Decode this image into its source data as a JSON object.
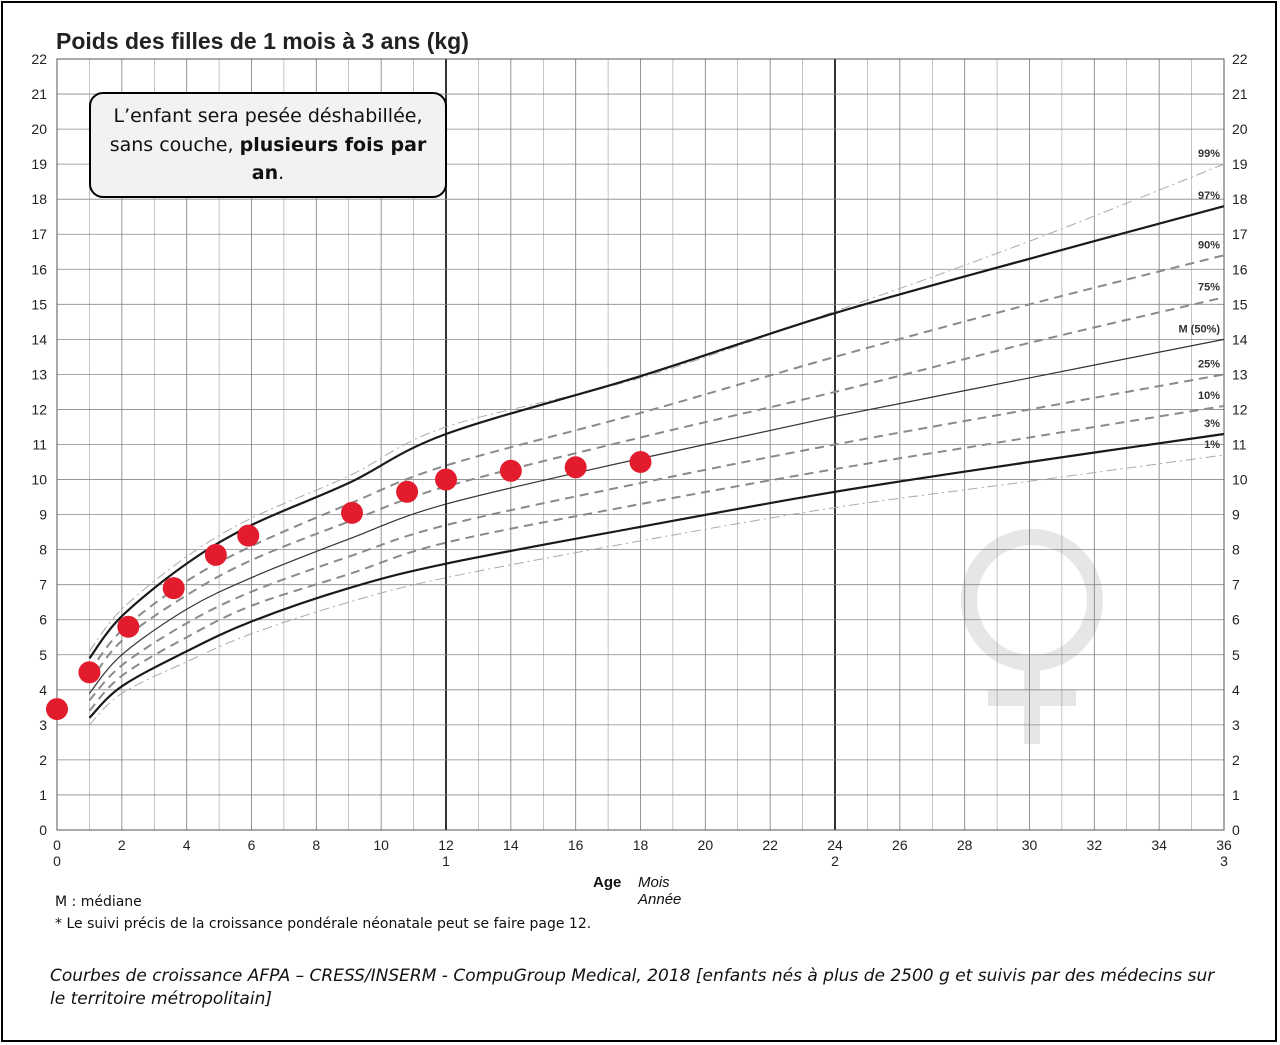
{
  "chart_data": {
    "type": "line",
    "title": "Poids des filles de 1 mois à 3 ans (kg)",
    "xlabel": "Age",
    "x_units": [
      "Mois",
      "Année"
    ],
    "xlim": [
      0,
      36
    ],
    "ylim": [
      0,
      22
    ],
    "x_ticks_months": [
      0,
      2,
      4,
      6,
      8,
      10,
      12,
      14,
      16,
      18,
      20,
      22,
      24,
      26,
      28,
      30,
      32,
      34,
      36
    ],
    "x_ticks_years": [
      {
        "x": 0,
        "label": "0"
      },
      {
        "x": 12,
        "label": "1"
      },
      {
        "x": 24,
        "label": "2"
      },
      {
        "x": 36,
        "label": "3"
      }
    ],
    "y_ticks": [
      0,
      1,
      2,
      3,
      4,
      5,
      6,
      7,
      8,
      9,
      10,
      11,
      12,
      13,
      14,
      15,
      16,
      17,
      18,
      19,
      20,
      21,
      22
    ],
    "grid": true,
    "series": [
      {
        "name": "99%",
        "style": "dashdot",
        "x": [
          1,
          2,
          4,
          6,
          9,
          12,
          18,
          24,
          30,
          36
        ],
        "y": [
          5.1,
          6.3,
          7.8,
          8.9,
          10.1,
          11.5,
          12.9,
          14.8,
          16.8,
          19.0
        ]
      },
      {
        "name": "97%",
        "style": "solid-thick",
        "x": [
          1,
          2,
          4,
          6,
          9,
          12,
          18,
          24,
          30,
          36
        ],
        "y": [
          4.9,
          6.1,
          7.6,
          8.7,
          9.9,
          11.3,
          12.95,
          14.75,
          16.3,
          17.8
        ]
      },
      {
        "name": "90%",
        "style": "dashed",
        "x": [
          1,
          2,
          4,
          6,
          9,
          12,
          18,
          24,
          30,
          36
        ],
        "y": [
          4.5,
          5.7,
          7.1,
          8.1,
          9.3,
          10.4,
          11.9,
          13.5,
          15.0,
          16.4
        ]
      },
      {
        "name": "75%",
        "style": "dashed",
        "x": [
          1,
          2,
          4,
          6,
          9,
          12,
          18,
          24,
          30,
          36
        ],
        "y": [
          4.2,
          5.4,
          6.7,
          7.7,
          8.8,
          9.8,
          11.2,
          12.5,
          13.9,
          15.2
        ]
      },
      {
        "name": "M (50%)",
        "style": "solid",
        "x": [
          1,
          2,
          4,
          6,
          9,
          12,
          18,
          24,
          30,
          36
        ],
        "y": [
          3.9,
          5.0,
          6.3,
          7.2,
          8.3,
          9.3,
          10.6,
          11.8,
          12.9,
          14.0
        ]
      },
      {
        "name": "25%",
        "style": "dashed",
        "x": [
          1,
          2,
          4,
          6,
          9,
          12,
          18,
          24,
          30,
          36
        ],
        "y": [
          3.7,
          4.7,
          5.9,
          6.8,
          7.8,
          8.7,
          9.9,
          11.0,
          12.0,
          13.0
        ]
      },
      {
        "name": "10%",
        "style": "dashed",
        "x": [
          1,
          2,
          4,
          6,
          9,
          12,
          18,
          24,
          30,
          36
        ],
        "y": [
          3.4,
          4.4,
          5.5,
          6.4,
          7.3,
          8.2,
          9.3,
          10.3,
          11.2,
          12.1
        ]
      },
      {
        "name": "3%",
        "style": "solid-thick",
        "x": [
          1,
          2,
          4,
          6,
          9,
          12,
          18,
          24,
          30,
          36
        ],
        "y": [
          3.2,
          4.1,
          5.1,
          5.95,
          6.9,
          7.6,
          8.65,
          9.65,
          10.5,
          11.3
        ]
      },
      {
        "name": "1%",
        "style": "dashdot",
        "x": [
          1,
          2,
          4,
          6,
          9,
          12,
          18,
          24,
          30,
          36
        ],
        "y": [
          3.0,
          3.9,
          4.8,
          5.6,
          6.5,
          7.2,
          8.25,
          9.2,
          9.95,
          10.7
        ]
      }
    ],
    "measurements": {
      "x": [
        0,
        1,
        2.2,
        3.6,
        4.9,
        5.9,
        9.1,
        10.8,
        12,
        14,
        16,
        18
      ],
      "y": [
        3.45,
        4.5,
        5.8,
        6.9,
        7.85,
        8.4,
        9.05,
        9.65,
        10.0,
        10.25,
        10.35,
        10.5
      ]
    },
    "colors": {
      "measurement": "#e31c2d",
      "grid": "#888888",
      "major_grid": "#000000",
      "curve": "#1a1a1a",
      "dashed": "#8a8a8a",
      "symbol": "#e6e6e6"
    }
  },
  "note": {
    "line1": "L’enfant sera pesée déshabillée,",
    "line2_start": "sans couche, ",
    "line2_bold": "plusieurs fois par an",
    "line2_end": "."
  },
  "axis": {
    "age_label": "Age",
    "month_label": "Mois",
    "year_label": "Année"
  },
  "footnotes": {
    "median": "M : médiane",
    "neonatal": "* Le suivi précis de la croissance pondérale néonatale peut se faire page 12."
  },
  "source": "Courbes de croissance  AFPA – CRESS/INSERM - CompuGroup Medical, 2018 [enfants nés à plus de 2500 g et suivis par des médecins sur le territoire métropolitain]",
  "symbol_icon": "female-symbol-icon"
}
